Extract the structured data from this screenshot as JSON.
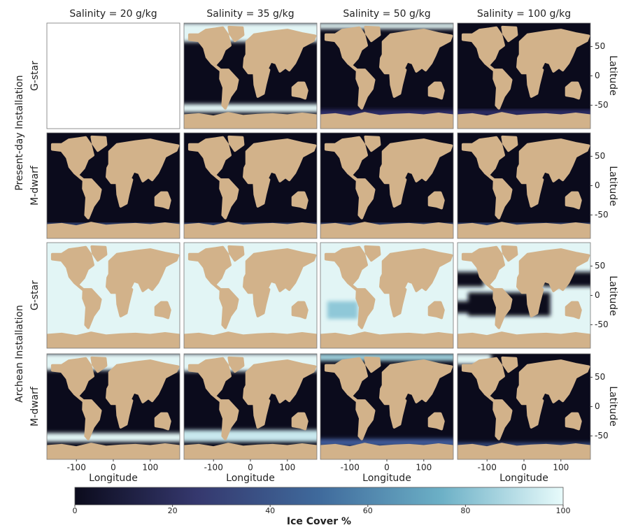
{
  "chart_data": {
    "type": "map-grid",
    "column_titles": [
      "Salinity = 20 g/kg",
      "Salinity = 35 g/kg",
      "Salinity = 50 g/kg",
      "Salinity = 100 g/kg"
    ],
    "row_groups": [
      {
        "label": "Present-day Installation",
        "rows": [
          "G-star",
          "M-dwarf"
        ]
      },
      {
        "label": "Archean Installation",
        "rows": [
          "G-star",
          "M-dwarf"
        ]
      }
    ],
    "xlabel": "Longitude",
    "ylabel": "Latitude",
    "xlim": [
      -180,
      180
    ],
    "xticks": [
      -100,
      0,
      100
    ],
    "ylim": [
      -90,
      90
    ],
    "yticks": [
      50,
      0,
      -50
    ],
    "colorbar": {
      "label": "Ice Cover %",
      "lim": [
        0,
        100
      ],
      "ticks": [
        0,
        20,
        40,
        60,
        80,
        100
      ],
      "colors": [
        "#0b0b1c",
        "#35386e",
        "#3f6a9c",
        "#6cb0c6",
        "#e8fbfb"
      ]
    },
    "land_color": "#d2b28a"
  }
}
